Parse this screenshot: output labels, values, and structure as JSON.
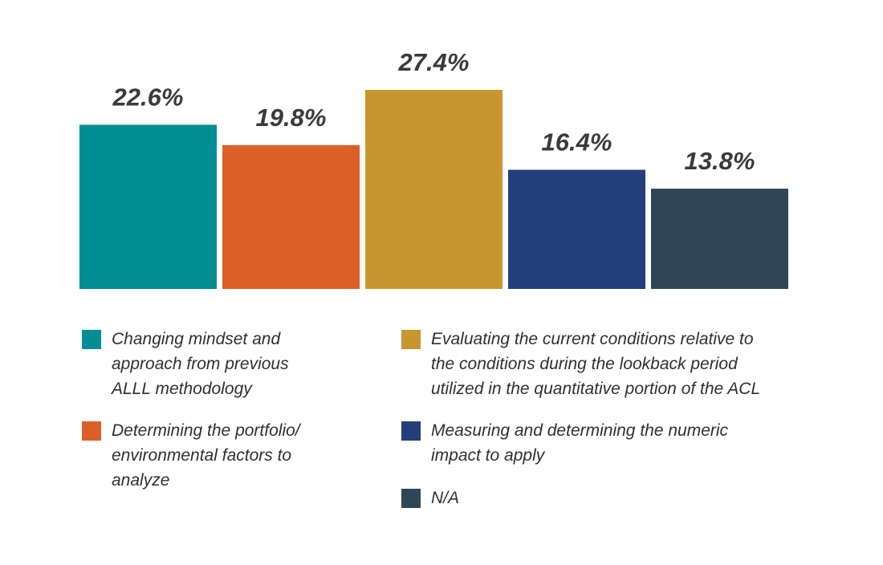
{
  "chart_data": {
    "type": "bar",
    "categories": [
      "Changing mindset and approach from previous ALLL methodology",
      "Determining the portfolio/ environmental factors to analyze",
      "Evaluating the current conditions relative to the conditions during the lookback period utilized in the quantitative portion of the ACL",
      "Measuring and determining the numeric impact to apply",
      "N/A"
    ],
    "values": [
      22.6,
      19.8,
      27.4,
      16.4,
      13.8
    ],
    "data_labels": [
      "22.6%",
      "19.8%",
      "27.4%",
      "16.4%",
      "13.8%"
    ],
    "colors": [
      "#008d94",
      "#dd5f28",
      "#c8962f",
      "#223f7b",
      "#2f4657"
    ],
    "title": "",
    "xlabel": "",
    "ylabel": "",
    "ylim": [
      0,
      27.4
    ],
    "grid": false,
    "legend_position": "bottom"
  },
  "legend": [
    {
      "lines": [
        "Changing mindset and",
        "approach from previous",
        "ALLL methodology"
      ],
      "color": "#008d94",
      "icon": "teal-square"
    },
    {
      "lines": [
        "Determining the portfolio/",
        "environmental factors to",
        "analyze"
      ],
      "color": "#dd5f28",
      "icon": "orange-square"
    },
    {
      "lines": [
        "Evaluating the current conditions relative to",
        "the conditions during the lookback period",
        "utilized in the quantitative portion of the ACL"
      ],
      "color": "#c8962f",
      "icon": "gold-square"
    },
    {
      "lines": [
        "Measuring and determining the numeric",
        "impact to apply"
      ],
      "color": "#223f7b",
      "icon": "navy-square"
    },
    {
      "lines": [
        "N/A"
      ],
      "color": "#2f4657",
      "icon": "slate-square"
    }
  ]
}
